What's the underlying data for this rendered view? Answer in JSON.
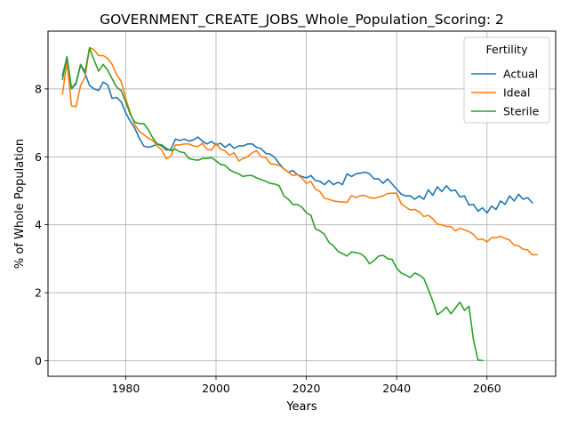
{
  "chart_data": {
    "type": "line",
    "title": "GOVERNMENT_CREATE_JOBS_Whole_Population_Scoring: 2",
    "xlabel": "Years",
    "ylabel": "% of Whole Population",
    "xlim": [
      1962.8,
      2075.2
    ],
    "ylim": [
      -0.46,
      9.7
    ],
    "xticks": [
      1980,
      2000,
      2020,
      2040,
      2060
    ],
    "yticks": [
      0,
      2,
      4,
      6,
      8
    ],
    "grid": true,
    "legend": {
      "title": "Fertility",
      "placement": "top-right"
    },
    "series": [
      {
        "name": "Actual",
        "color": "#1f77b4",
        "points": [
          [
            1966,
            8.4
          ],
          [
            1967,
            8.93
          ],
          [
            1968,
            8.0
          ],
          [
            1969,
            8.15
          ],
          [
            1970,
            8.7
          ],
          [
            1971,
            8.45
          ],
          [
            1972,
            8.1
          ],
          [
            1973,
            8.0
          ],
          [
            1974,
            7.95
          ],
          [
            1975,
            8.2
          ],
          [
            1976,
            8.12
          ],
          [
            1977,
            7.72
          ],
          [
            1978,
            7.75
          ],
          [
            1979,
            7.62
          ],
          [
            1980,
            7.3
          ],
          [
            1981,
            7.05
          ],
          [
            1982,
            6.85
          ],
          [
            1983,
            6.55
          ],
          [
            1984,
            6.32
          ],
          [
            1985,
            6.28
          ],
          [
            1986,
            6.32
          ],
          [
            1987,
            6.38
          ],
          [
            1988,
            6.32
          ],
          [
            1989,
            6.2
          ],
          [
            1990,
            6.22
          ],
          [
            1991,
            6.52
          ],
          [
            1992,
            6.48
          ],
          [
            1993,
            6.52
          ],
          [
            1994,
            6.46
          ],
          [
            1995,
            6.5
          ],
          [
            1996,
            6.58
          ],
          [
            1997,
            6.46
          ],
          [
            1998,
            6.38
          ],
          [
            1999,
            6.45
          ],
          [
            2000,
            6.35
          ],
          [
            2001,
            6.4
          ],
          [
            2002,
            6.28
          ],
          [
            2003,
            6.38
          ],
          [
            2004,
            6.25
          ],
          [
            2005,
            6.32
          ],
          [
            2006,
            6.32
          ],
          [
            2007,
            6.38
          ],
          [
            2008,
            6.38
          ],
          [
            2009,
            6.28
          ],
          [
            2010,
            6.24
          ],
          [
            2011,
            6.1
          ],
          [
            2012,
            6.08
          ],
          [
            2013,
            5.98
          ],
          [
            2014,
            5.8
          ],
          [
            2015,
            5.65
          ],
          [
            2016,
            5.55
          ],
          [
            2017,
            5.6
          ],
          [
            2018,
            5.48
          ],
          [
            2019,
            5.42
          ],
          [
            2020,
            5.38
          ],
          [
            2021,
            5.45
          ],
          [
            2022,
            5.3
          ],
          [
            2023,
            5.28
          ],
          [
            2024,
            5.18
          ],
          [
            2025,
            5.3
          ],
          [
            2026,
            5.18
          ],
          [
            2027,
            5.25
          ],
          [
            2028,
            5.18
          ],
          [
            2029,
            5.5
          ],
          [
            2030,
            5.42
          ],
          [
            2031,
            5.5
          ],
          [
            2032,
            5.52
          ],
          [
            2033,
            5.55
          ],
          [
            2034,
            5.5
          ],
          [
            2035,
            5.35
          ],
          [
            2036,
            5.35
          ],
          [
            2037,
            5.22
          ],
          [
            2038,
            5.35
          ],
          [
            2039,
            5.2
          ],
          [
            2040,
            5.05
          ],
          [
            2041,
            4.9
          ],
          [
            2042,
            4.85
          ],
          [
            2043,
            4.85
          ],
          [
            2044,
            4.75
          ],
          [
            2045,
            4.85
          ],
          [
            2046,
            4.75
          ],
          [
            2047,
            5.03
          ],
          [
            2048,
            4.87
          ],
          [
            2049,
            5.12
          ],
          [
            2050,
            4.98
          ],
          [
            2051,
            5.15
          ],
          [
            2052,
            5.0
          ],
          [
            2053,
            5.02
          ],
          [
            2054,
            4.82
          ],
          [
            2055,
            4.85
          ],
          [
            2056,
            4.58
          ],
          [
            2057,
            4.6
          ],
          [
            2058,
            4.4
          ],
          [
            2059,
            4.5
          ],
          [
            2060,
            4.35
          ],
          [
            2061,
            4.55
          ],
          [
            2062,
            4.45
          ],
          [
            2063,
            4.7
          ],
          [
            2064,
            4.6
          ],
          [
            2065,
            4.85
          ],
          [
            2066,
            4.7
          ],
          [
            2067,
            4.9
          ],
          [
            2068,
            4.75
          ],
          [
            2069,
            4.8
          ],
          [
            2070,
            4.65
          ]
        ]
      },
      {
        "name": "Ideal",
        "color": "#ff7f0e",
        "points": [
          [
            1966,
            7.85
          ],
          [
            1967,
            8.8
          ],
          [
            1968,
            7.5
          ],
          [
            1969,
            7.48
          ],
          [
            1970,
            8.1
          ],
          [
            1971,
            8.35
          ],
          [
            1972,
            9.22
          ],
          [
            1973,
            9.15
          ],
          [
            1974,
            8.98
          ],
          [
            1975,
            8.98
          ],
          [
            1976,
            8.9
          ],
          [
            1977,
            8.72
          ],
          [
            1978,
            8.42
          ],
          [
            1979,
            8.22
          ],
          [
            1980,
            7.72
          ],
          [
            1981,
            7.3
          ],
          [
            1982,
            6.95
          ],
          [
            1983,
            6.75
          ],
          [
            1984,
            6.65
          ],
          [
            1985,
            6.55
          ],
          [
            1986,
            6.48
          ],
          [
            1987,
            6.32
          ],
          [
            1988,
            6.2
          ],
          [
            1989,
            5.94
          ],
          [
            1990,
            6.02
          ],
          [
            1991,
            6.35
          ],
          [
            1992,
            6.35
          ],
          [
            1993,
            6.38
          ],
          [
            1994,
            6.38
          ],
          [
            1995,
            6.32
          ],
          [
            1996,
            6.3
          ],
          [
            1997,
            6.4
          ],
          [
            1998,
            6.22
          ],
          [
            1999,
            6.2
          ],
          [
            2000,
            6.4
          ],
          [
            2001,
            6.22
          ],
          [
            2002,
            6.18
          ],
          [
            2003,
            6.05
          ],
          [
            2004,
            6.12
          ],
          [
            2005,
            5.88
          ],
          [
            2006,
            5.95
          ],
          [
            2007,
            6.0
          ],
          [
            2008,
            6.12
          ],
          [
            2009,
            6.18
          ],
          [
            2010,
            6.0
          ],
          [
            2011,
            5.98
          ],
          [
            2012,
            5.8
          ],
          [
            2013,
            5.78
          ],
          [
            2014,
            5.75
          ],
          [
            2015,
            5.65
          ],
          [
            2016,
            5.55
          ],
          [
            2017,
            5.45
          ],
          [
            2018,
            5.48
          ],
          [
            2019,
            5.38
          ],
          [
            2020,
            5.22
          ],
          [
            2021,
            5.28
          ],
          [
            2022,
            5.05
          ],
          [
            2023,
            4.98
          ],
          [
            2024,
            4.78
          ],
          [
            2025,
            4.75
          ],
          [
            2026,
            4.7
          ],
          [
            2027,
            4.68
          ],
          [
            2028,
            4.67
          ],
          [
            2029,
            4.66
          ],
          [
            2030,
            4.86
          ],
          [
            2031,
            4.8
          ],
          [
            2032,
            4.86
          ],
          [
            2033,
            4.86
          ],
          [
            2034,
            4.8
          ],
          [
            2035,
            4.78
          ],
          [
            2036,
            4.82
          ],
          [
            2037,
            4.85
          ],
          [
            2038,
            4.92
          ],
          [
            2039,
            4.93
          ],
          [
            2040,
            4.93
          ],
          [
            2041,
            4.62
          ],
          [
            2042,
            4.52
          ],
          [
            2043,
            4.44
          ],
          [
            2044,
            4.45
          ],
          [
            2045,
            4.38
          ],
          [
            2046,
            4.24
          ],
          [
            2047,
            4.28
          ],
          [
            2048,
            4.18
          ],
          [
            2049,
            4.02
          ],
          [
            2050,
            4.0
          ],
          [
            2051,
            3.95
          ],
          [
            2052,
            3.95
          ],
          [
            2053,
            3.82
          ],
          [
            2054,
            3.9
          ],
          [
            2055,
            3.85
          ],
          [
            2056,
            3.8
          ],
          [
            2057,
            3.72
          ],
          [
            2058,
            3.56
          ],
          [
            2059,
            3.58
          ],
          [
            2060,
            3.5
          ],
          [
            2061,
            3.62
          ],
          [
            2062,
            3.62
          ],
          [
            2063,
            3.66
          ],
          [
            2064,
            3.6
          ],
          [
            2065,
            3.55
          ],
          [
            2066,
            3.4
          ],
          [
            2067,
            3.38
          ],
          [
            2068,
            3.28
          ],
          [
            2069,
            3.26
          ],
          [
            2070,
            3.12
          ],
          [
            2071,
            3.12
          ]
        ]
      },
      {
        "name": "Sterile",
        "color": "#2ca02c",
        "points": [
          [
            1966,
            8.28
          ],
          [
            1967,
            8.95
          ],
          [
            1968,
            8.02
          ],
          [
            1969,
            8.18
          ],
          [
            1970,
            8.72
          ],
          [
            1971,
            8.5
          ],
          [
            1972,
            9.2
          ],
          [
            1973,
            8.85
          ],
          [
            1974,
            8.52
          ],
          [
            1975,
            8.72
          ],
          [
            1976,
            8.55
          ],
          [
            1977,
            8.3
          ],
          [
            1978,
            8.05
          ],
          [
            1979,
            7.95
          ],
          [
            1980,
            7.62
          ],
          [
            1981,
            7.25
          ],
          [
            1982,
            7.02
          ],
          [
            1983,
            6.98
          ],
          [
            1984,
            6.98
          ],
          [
            1985,
            6.8
          ],
          [
            1986,
            6.55
          ],
          [
            1987,
            6.38
          ],
          [
            1988,
            6.35
          ],
          [
            1989,
            6.25
          ],
          [
            1990,
            6.18
          ],
          [
            1991,
            6.22
          ],
          [
            1992,
            6.15
          ],
          [
            1993,
            6.12
          ],
          [
            1994,
            5.95
          ],
          [
            1995,
            5.92
          ],
          [
            1996,
            5.9
          ],
          [
            1997,
            5.95
          ],
          [
            1998,
            5.95
          ],
          [
            1999,
            5.98
          ],
          [
            2000,
            5.88
          ],
          [
            2001,
            5.78
          ],
          [
            2002,
            5.75
          ],
          [
            2003,
            5.62
          ],
          [
            2004,
            5.55
          ],
          [
            2005,
            5.5
          ],
          [
            2006,
            5.42
          ],
          [
            2007,
            5.45
          ],
          [
            2008,
            5.45
          ],
          [
            2009,
            5.38
          ],
          [
            2010,
            5.33
          ],
          [
            2011,
            5.28
          ],
          [
            2012,
            5.22
          ],
          [
            2013,
            5.2
          ],
          [
            2014,
            5.15
          ],
          [
            2015,
            4.85
          ],
          [
            2016,
            4.75
          ],
          [
            2017,
            4.6
          ],
          [
            2018,
            4.6
          ],
          [
            2019,
            4.52
          ],
          [
            2020,
            4.35
          ],
          [
            2021,
            4.28
          ],
          [
            2022,
            3.88
          ],
          [
            2023,
            3.82
          ],
          [
            2024,
            3.72
          ],
          [
            2025,
            3.48
          ],
          [
            2026,
            3.38
          ],
          [
            2027,
            3.22
          ],
          [
            2028,
            3.15
          ],
          [
            2029,
            3.08
          ],
          [
            2030,
            3.2
          ],
          [
            2031,
            3.18
          ],
          [
            2032,
            3.15
          ],
          [
            2033,
            3.05
          ],
          [
            2034,
            2.85
          ],
          [
            2035,
            2.95
          ],
          [
            2036,
            3.08
          ],
          [
            2037,
            3.1
          ],
          [
            2038,
            3.0
          ],
          [
            2039,
            2.98
          ],
          [
            2040,
            2.72
          ],
          [
            2041,
            2.58
          ],
          [
            2042,
            2.52
          ],
          [
            2043,
            2.45
          ],
          [
            2044,
            2.58
          ],
          [
            2045,
            2.52
          ],
          [
            2046,
            2.42
          ],
          [
            2047,
            2.1
          ],
          [
            2048,
            1.75
          ],
          [
            2049,
            1.35
          ],
          [
            2050,
            1.45
          ],
          [
            2051,
            1.58
          ],
          [
            2052,
            1.38
          ],
          [
            2053,
            1.55
          ],
          [
            2054,
            1.72
          ],
          [
            2055,
            1.48
          ],
          [
            2056,
            1.6
          ],
          [
            2057,
            0.62
          ],
          [
            2058,
            0.02
          ],
          [
            2059,
            0.0
          ]
        ]
      }
    ]
  }
}
